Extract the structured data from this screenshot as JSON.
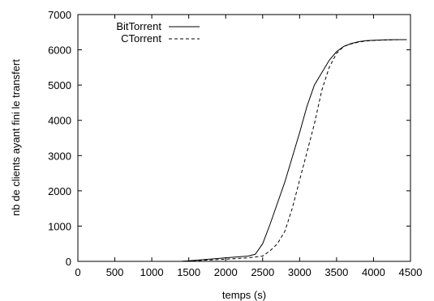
{
  "chart_data": {
    "type": "line",
    "title": "",
    "xlabel": "temps (s)",
    "ylabel": "nb de clients ayant fini le transfert",
    "xlim": [
      0,
      4500
    ],
    "ylim": [
      0,
      7000
    ],
    "x_ticks": [
      0,
      500,
      1000,
      1500,
      2000,
      2500,
      3000,
      3500,
      4000,
      4500
    ],
    "y_ticks": [
      0,
      1000,
      2000,
      3000,
      4000,
      5000,
      6000,
      7000
    ],
    "grid": false,
    "legend": "top-left",
    "series": [
      {
        "name": "BitTorrent",
        "style": "solid",
        "x": [
          1400,
          1700,
          2000,
          2300,
          2400,
          2500,
          2600,
          2700,
          2800,
          2900,
          3000,
          3100,
          3200,
          3300,
          3400,
          3500,
          3600,
          3700,
          3800,
          3900,
          4000,
          4100,
          4200,
          4300,
          4450
        ],
        "y": [
          0,
          50,
          100,
          150,
          200,
          500,
          1050,
          1650,
          2250,
          2950,
          3650,
          4400,
          5000,
          5350,
          5700,
          5950,
          6100,
          6180,
          6230,
          6260,
          6270,
          6280,
          6285,
          6290,
          6290
        ]
      },
      {
        "name": "CTorrent",
        "style": "dashed",
        "x": [
          1400,
          1700,
          2000,
          2300,
          2500,
          2600,
          2700,
          2800,
          2900,
          3000,
          3100,
          3200,
          3300,
          3400,
          3500,
          3600,
          3700,
          3800,
          3900,
          4000,
          4100,
          4200,
          4300,
          4450
        ],
        "y": [
          0,
          30,
          60,
          100,
          150,
          300,
          500,
          850,
          1500,
          2300,
          3100,
          3900,
          4850,
          5500,
          5900,
          6100,
          6170,
          6220,
          6250,
          6265,
          6275,
          6280,
          6285,
          6290
        ]
      }
    ]
  }
}
